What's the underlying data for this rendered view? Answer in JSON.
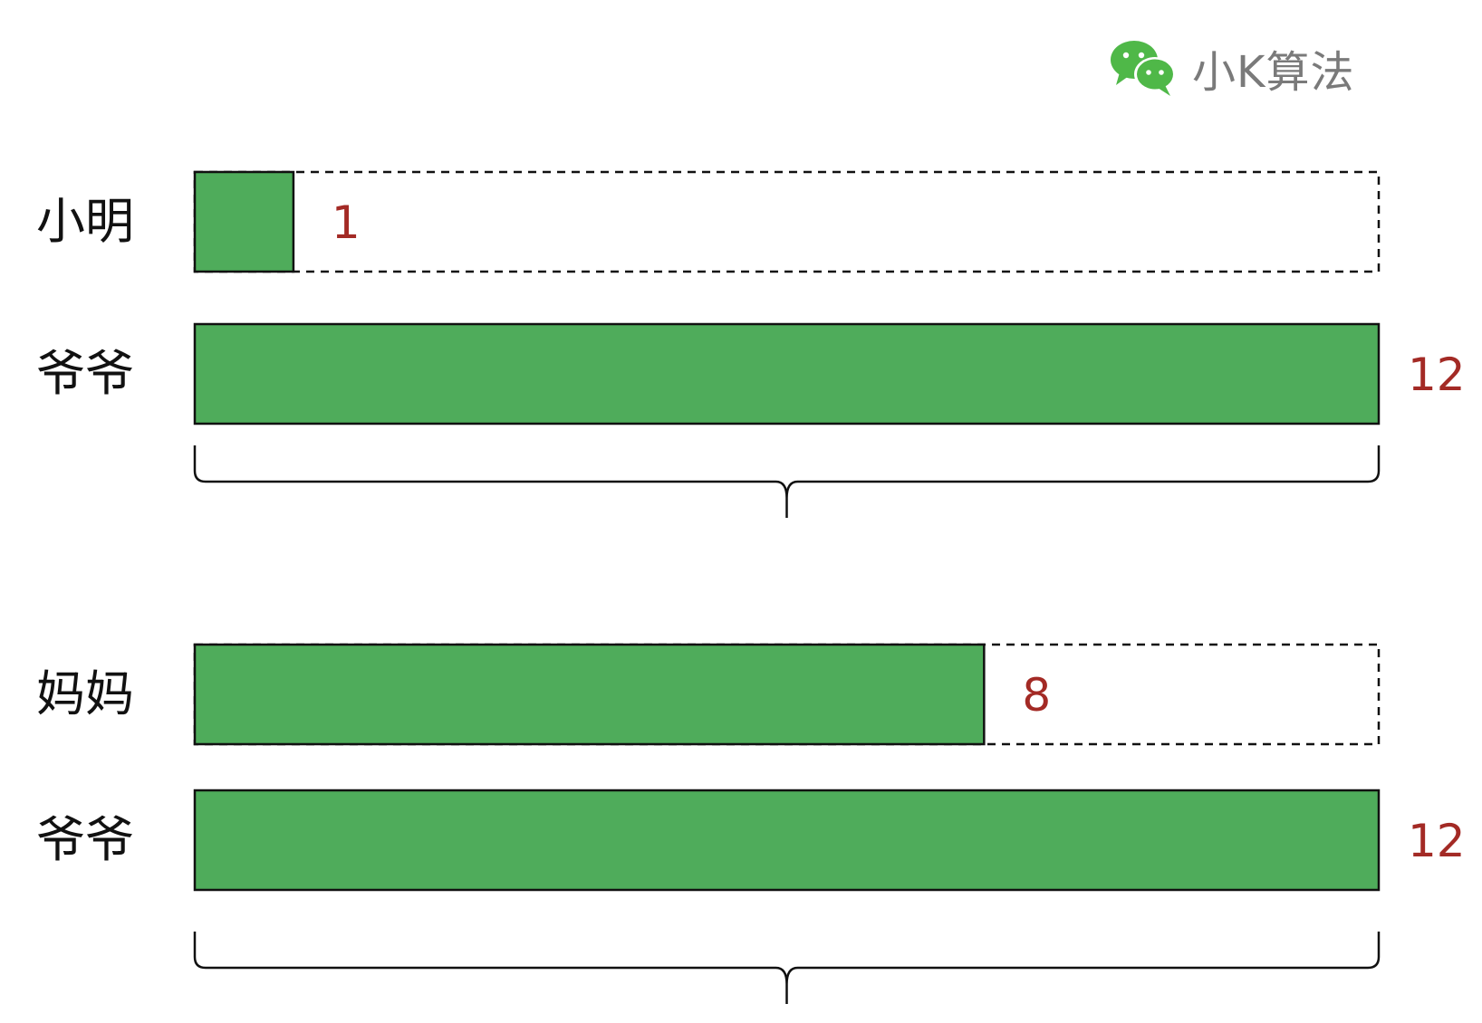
{
  "brand": {
    "text": "小K算法",
    "icon": "wechat-icon",
    "icon_color": "#4fb848"
  },
  "colors": {
    "bar_fill": "#4fac5b",
    "value_text": "#a32a25",
    "label_text": "#111111"
  },
  "max_value": 12,
  "groups": [
    {
      "rows": [
        {
          "label": "小明",
          "value": 1,
          "value_label": "1"
        },
        {
          "label": "爷爷",
          "value": 12,
          "value_label": "12"
        }
      ]
    },
    {
      "rows": [
        {
          "label": "妈妈",
          "value": 8,
          "value_label": "8"
        },
        {
          "label": "爷爷",
          "value": 12,
          "value_label": "12"
        }
      ]
    }
  ]
}
